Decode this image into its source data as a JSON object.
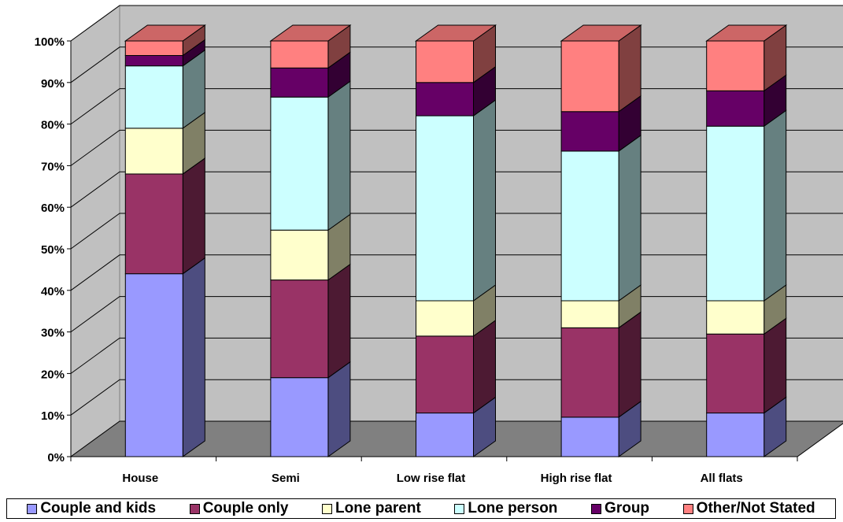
{
  "chart_data": {
    "type": "bar",
    "stacked": true,
    "percent": true,
    "three_d": true,
    "categories": [
      "House",
      "Semi",
      "Low rise flat",
      "High rise flat",
      "All flats"
    ],
    "y_ticks": [
      "0%",
      "10%",
      "20%",
      "30%",
      "40%",
      "50%",
      "60%",
      "70%",
      "80%",
      "90%",
      "100%"
    ],
    "ylim": [
      0,
      100
    ],
    "grid": true,
    "legend_position": "bottom",
    "series": [
      {
        "name": "Couple and kids",
        "color": "#9999ff",
        "values": [
          44,
          19,
          10.5,
          9.5,
          10.5
        ]
      },
      {
        "name": "Couple only",
        "color": "#993366",
        "values": [
          24,
          23.5,
          18.5,
          21.5,
          19
        ]
      },
      {
        "name": "Lone parent",
        "color": "#ffffcc",
        "values": [
          11,
          12,
          8.5,
          6.5,
          8
        ]
      },
      {
        "name": "Lone person",
        "color": "#ccffff",
        "values": [
          15,
          32,
          44.5,
          36,
          42
        ]
      },
      {
        "name": "Group",
        "color": "#660066",
        "values": [
          2.5,
          7,
          8,
          9.5,
          8.5
        ]
      },
      {
        "name": "Other/Not Stated",
        "color": "#ff8080",
        "values": [
          3.5,
          6.5,
          10,
          17,
          12
        ]
      }
    ]
  }
}
